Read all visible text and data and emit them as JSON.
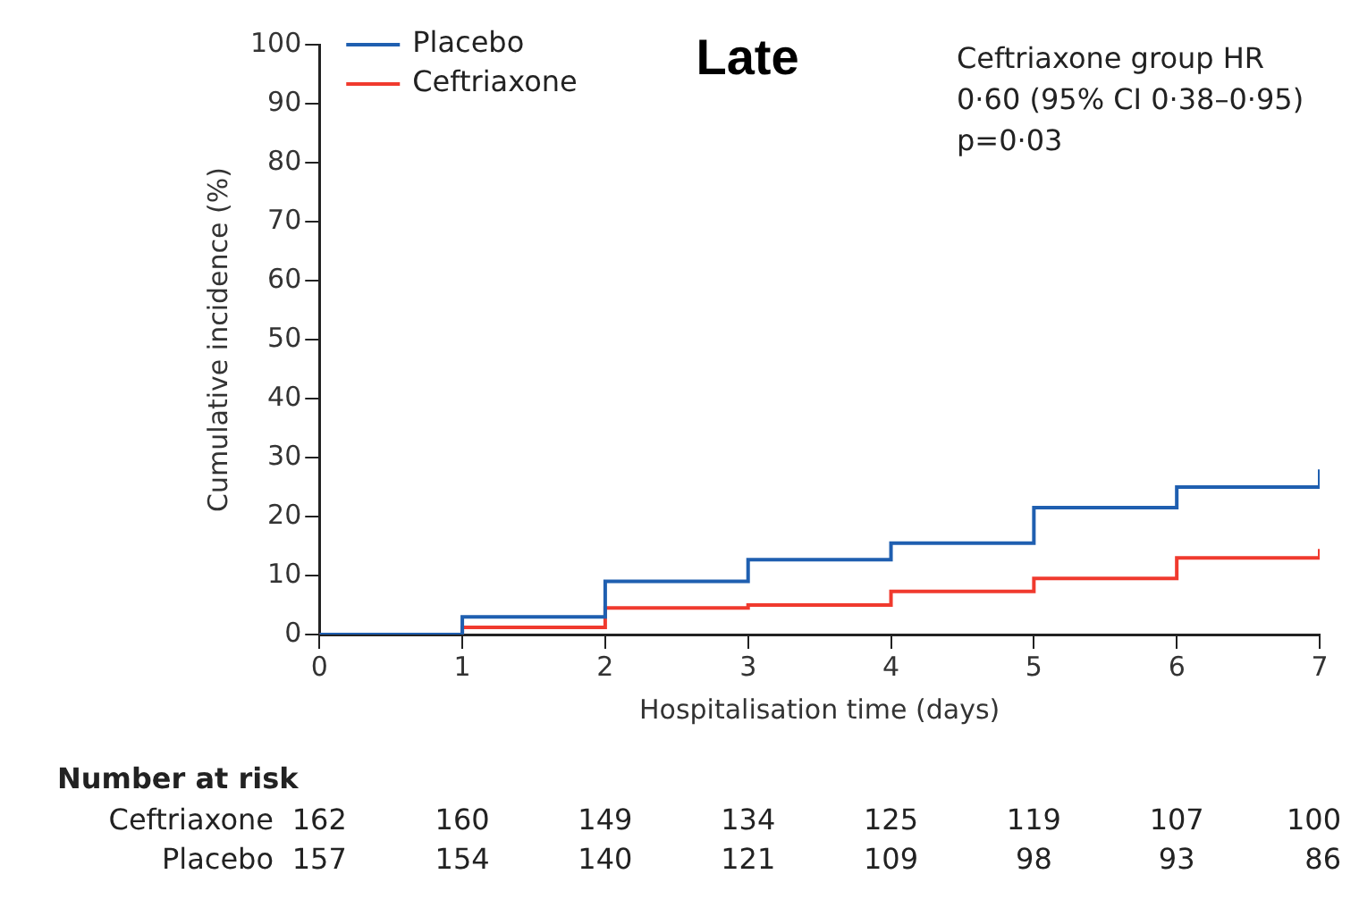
{
  "chart_data": {
    "type": "step",
    "title": "Late",
    "xlabel": "Hospitalisation time (days)",
    "ylabel": "Cumulative incidence (%)",
    "x": [
      0,
      1,
      2,
      3,
      4,
      5,
      6,
      7
    ],
    "series": [
      {
        "name": "Placebo",
        "color": "#1f5fb0",
        "values": [
          0,
          3,
          9,
          12.7,
          15.5,
          21.5,
          25,
          28
        ]
      },
      {
        "name": "Ceftriaxone",
        "color": "#f03a2e",
        "values": [
          0,
          1.2,
          4.5,
          5,
          7.3,
          9.5,
          13,
          14.5
        ]
      }
    ],
    "xlim": [
      0,
      7
    ],
    "xticks": [
      0,
      1,
      2,
      3,
      4,
      5,
      6,
      7
    ],
    "ylim": [
      0,
      100
    ],
    "yticks": [
      0,
      10,
      20,
      30,
      40,
      50,
      60,
      70,
      80,
      90,
      100
    ],
    "grid": false,
    "legend": "top left",
    "annotations": [
      "Ceftriaxone group HR\n0·60 (95% CI 0·38–0·95)\np=0·03",
      "Number at risk",
      "Ceftriaxone 162 160 149 134 125 119 107 100",
      "Placebo 157 154 140 121 109 98 93 86"
    ]
  }
}
